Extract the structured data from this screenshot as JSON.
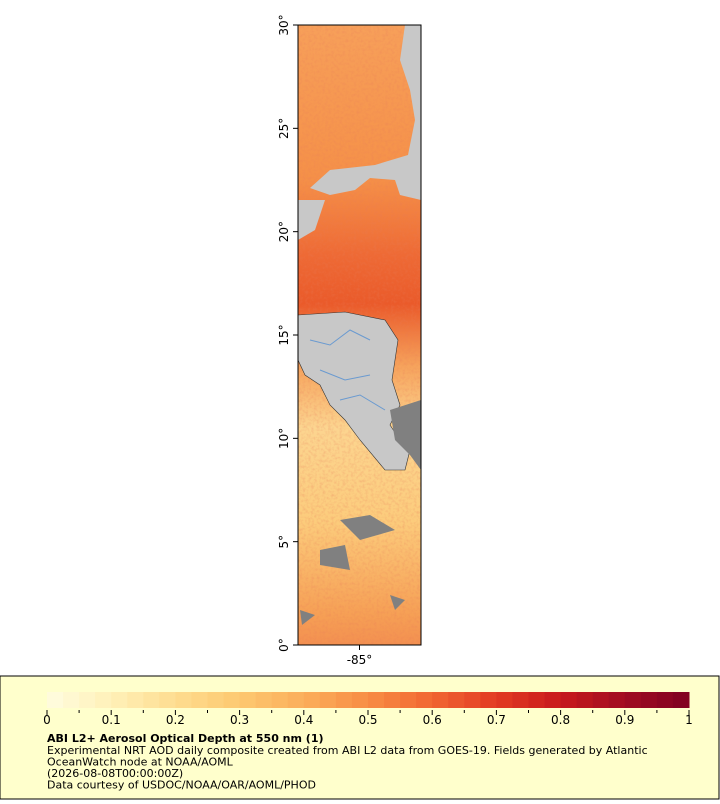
{
  "map": {
    "lat_range": [
      0,
      30
    ],
    "lon_range": [
      -88,
      -82
    ],
    "lat_ticks": [
      {
        "value": 30,
        "label": "30°"
      },
      {
        "value": 25,
        "label": "25°"
      },
      {
        "value": 20,
        "label": "20°"
      },
      {
        "value": 15,
        "label": "15°"
      },
      {
        "value": 10,
        "label": "10°"
      },
      {
        "value": 5,
        "label": "5°"
      },
      {
        "value": 0,
        "label": "0°"
      }
    ],
    "lon_ticks": [
      {
        "value": -85,
        "label": "-85°"
      }
    ]
  },
  "colorbar": {
    "range": [
      0,
      1
    ],
    "ticks": [
      0,
      0.1,
      0.2,
      0.3,
      0.4,
      0.5,
      0.6,
      0.7,
      0.8,
      0.9,
      1
    ],
    "colors": [
      "#fffde0",
      "#fff0b8",
      "#fedc90",
      "#fdc870",
      "#fbae5a",
      "#f88d44",
      "#f16632",
      "#e23b22",
      "#c81a1c",
      "#a00c22",
      "#800020"
    ]
  },
  "legend": {
    "title": "ABI L2+ Aerosol Optical Depth at 550 nm (1)",
    "lines": [
      "Experimental NRT AOD daily composite created from ABI L2 data from GOES-19. Fields generated by Atlantic",
      "OceanWatch node at NOAA/AOML",
      "(2026-08-08T00:00:00Z)",
      "Data courtesy of USDOC/NOAA/OAR/AOML/PHOD"
    ]
  }
}
